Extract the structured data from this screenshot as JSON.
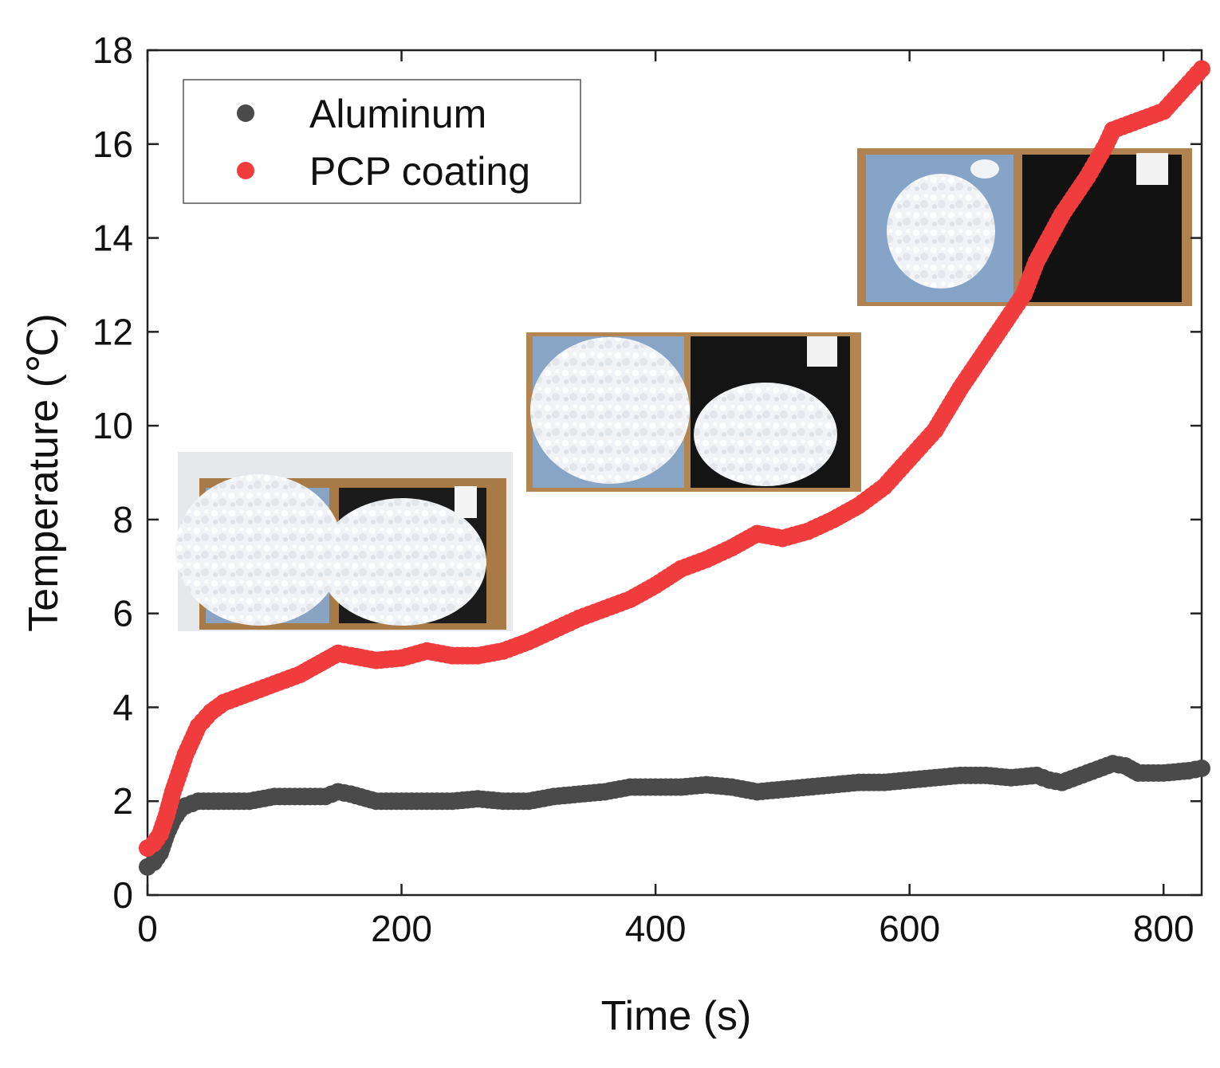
{
  "chart_data": {
    "type": "scatter",
    "title": "",
    "xlabel": "Time (s)",
    "ylabel": "Temperature (℃)",
    "xlim": [
      0,
      830
    ],
    "ylim": [
      0,
      18
    ],
    "xticks": [
      0,
      200,
      400,
      600,
      800
    ],
    "yticks": [
      0,
      2,
      4,
      6,
      8,
      10,
      12,
      14,
      16,
      18
    ],
    "grid": false,
    "legend_position": "top-left",
    "series": [
      {
        "name": "Aluminum",
        "color": "#4a4a4a",
        "points": [
          [
            0,
            0.6
          ],
          [
            5,
            0.7
          ],
          [
            10,
            0.9
          ],
          [
            15,
            1.3
          ],
          [
            20,
            1.6
          ],
          [
            25,
            1.8
          ],
          [
            30,
            1.9
          ],
          [
            40,
            2.0
          ],
          [
            60,
            2.0
          ],
          [
            80,
            2.0
          ],
          [
            100,
            2.1
          ],
          [
            120,
            2.1
          ],
          [
            140,
            2.1
          ],
          [
            150,
            2.2
          ],
          [
            160,
            2.15
          ],
          [
            180,
            2.0
          ],
          [
            200,
            2.0
          ],
          [
            220,
            2.0
          ],
          [
            240,
            2.0
          ],
          [
            260,
            2.05
          ],
          [
            280,
            2.0
          ],
          [
            300,
            2.0
          ],
          [
            320,
            2.1
          ],
          [
            340,
            2.15
          ],
          [
            360,
            2.2
          ],
          [
            380,
            2.3
          ],
          [
            400,
            2.3
          ],
          [
            420,
            2.3
          ],
          [
            440,
            2.35
          ],
          [
            460,
            2.3
          ],
          [
            480,
            2.2
          ],
          [
            500,
            2.25
          ],
          [
            520,
            2.3
          ],
          [
            540,
            2.35
          ],
          [
            560,
            2.4
          ],
          [
            580,
            2.4
          ],
          [
            600,
            2.45
          ],
          [
            620,
            2.5
          ],
          [
            640,
            2.55
          ],
          [
            660,
            2.55
          ],
          [
            680,
            2.5
          ],
          [
            700,
            2.55
          ],
          [
            710,
            2.45
          ],
          [
            720,
            2.4
          ],
          [
            740,
            2.6
          ],
          [
            760,
            2.8
          ],
          [
            770,
            2.75
          ],
          [
            780,
            2.6
          ],
          [
            800,
            2.6
          ],
          [
            820,
            2.65
          ],
          [
            830,
            2.7
          ]
        ]
      },
      {
        "name": "PCP coating",
        "color": "#f03c3c",
        "points": [
          [
            0,
            1.0
          ],
          [
            5,
            1.1
          ],
          [
            10,
            1.3
          ],
          [
            15,
            1.7
          ],
          [
            20,
            2.2
          ],
          [
            25,
            2.6
          ],
          [
            30,
            3.0
          ],
          [
            35,
            3.3
          ],
          [
            40,
            3.6
          ],
          [
            50,
            3.9
          ],
          [
            60,
            4.1
          ],
          [
            80,
            4.3
          ],
          [
            100,
            4.5
          ],
          [
            120,
            4.7
          ],
          [
            140,
            5.0
          ],
          [
            150,
            5.15
          ],
          [
            160,
            5.1
          ],
          [
            180,
            5.0
          ],
          [
            200,
            5.05
          ],
          [
            220,
            5.2
          ],
          [
            240,
            5.1
          ],
          [
            260,
            5.1
          ],
          [
            280,
            5.2
          ],
          [
            300,
            5.4
          ],
          [
            320,
            5.65
          ],
          [
            340,
            5.9
          ],
          [
            360,
            6.1
          ],
          [
            380,
            6.3
          ],
          [
            400,
            6.6
          ],
          [
            420,
            6.95
          ],
          [
            440,
            7.15
          ],
          [
            460,
            7.4
          ],
          [
            480,
            7.7
          ],
          [
            500,
            7.6
          ],
          [
            520,
            7.75
          ],
          [
            540,
            8.0
          ],
          [
            560,
            8.3
          ],
          [
            580,
            8.7
          ],
          [
            600,
            9.3
          ],
          [
            620,
            9.9
          ],
          [
            640,
            10.8
          ],
          [
            660,
            11.6
          ],
          [
            680,
            12.4
          ],
          [
            690,
            12.8
          ],
          [
            700,
            13.5
          ],
          [
            720,
            14.5
          ],
          [
            740,
            15.3
          ],
          [
            755,
            16.0
          ],
          [
            760,
            16.3
          ],
          [
            780,
            16.5
          ],
          [
            800,
            16.7
          ],
          [
            820,
            17.3
          ],
          [
            830,
            17.6
          ]
        ]
      }
    ],
    "insets": [
      "photo",
      "photo",
      "photo"
    ]
  }
}
